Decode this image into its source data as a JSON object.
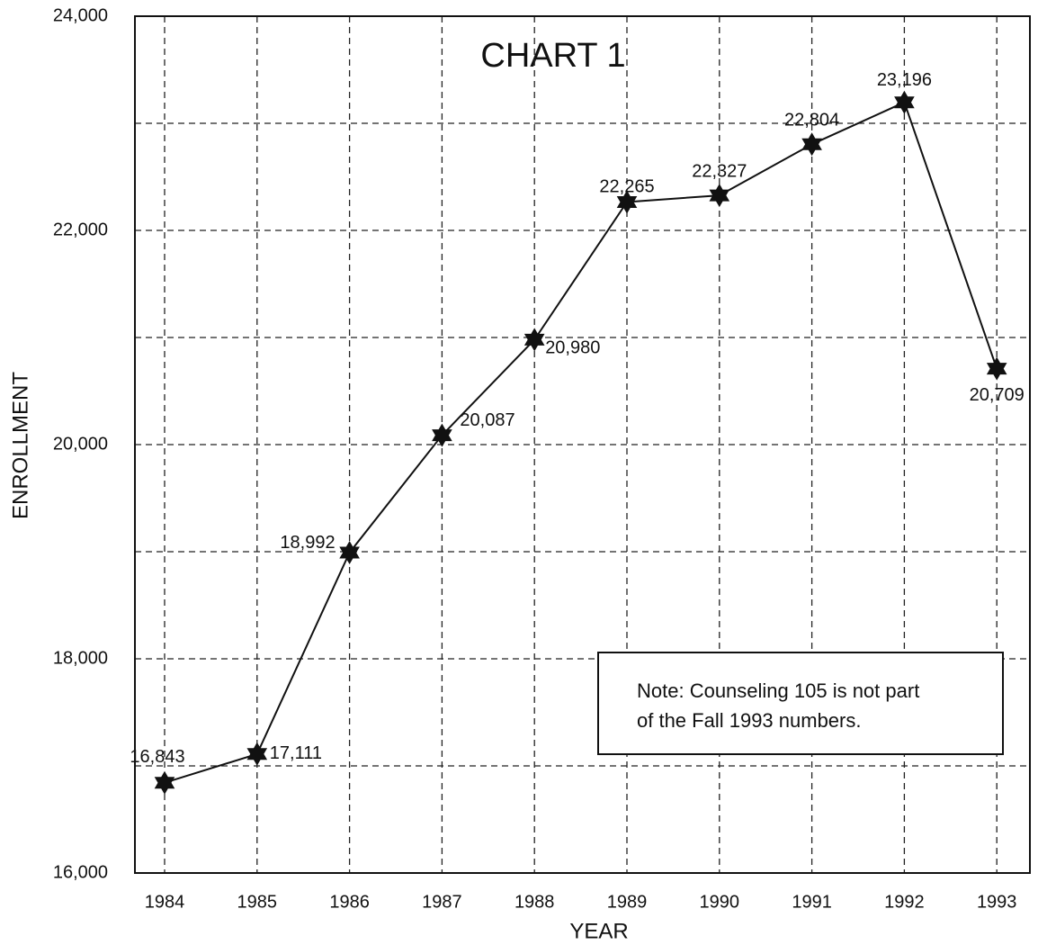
{
  "chart_data": {
    "type": "line",
    "title": "CHART 1",
    "x_label": "YEAR",
    "y_label": "ENROLLMENT",
    "categories": [
      "1984",
      "1985",
      "1986",
      "1987",
      "1988",
      "1989",
      "1990",
      "1991",
      "1992",
      "1993"
    ],
    "series": [
      {
        "name": "Enrollment",
        "color": "#111111",
        "values": [
          16843,
          17111,
          18992,
          20087,
          20980,
          22265,
          22327,
          22804,
          23196,
          20709
        ],
        "value_labels": [
          "16,843",
          "17,111",
          "18,992",
          "20,087",
          "20,980",
          "22,265",
          "22,327",
          "22,804",
          "23,196",
          "20,709"
        ]
      }
    ],
    "ylim": [
      16000,
      24000
    ],
    "yticks": [
      {
        "value": 16000,
        "label": "16,000"
      },
      {
        "value": 18000,
        "label": "18,000"
      },
      {
        "value": 20000,
        "label": "20,000"
      },
      {
        "value": 22000,
        "label": "22,000"
      },
      {
        "value": 24000,
        "label": "24,000"
      }
    ],
    "yminorticks": [
      17000,
      19000,
      21000,
      23000
    ],
    "grid": true,
    "annotation": [
      "Note: Counseling 105 is not part",
      "of the Fall 1993 numbers."
    ]
  }
}
